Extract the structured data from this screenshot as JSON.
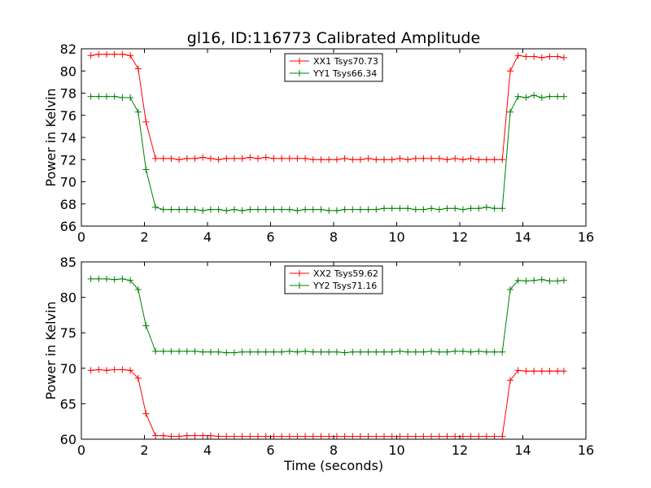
{
  "chart_data": [
    {
      "type": "line",
      "title": "gl16, ID:116773 Calibrated Amplitude",
      "xlabel": "",
      "ylabel": "Power in Kelvin",
      "xlim": [
        0,
        16
      ],
      "ylim": [
        66,
        82
      ],
      "xticks": [
        0,
        2,
        4,
        6,
        8,
        10,
        12,
        14,
        16
      ],
      "yticks": [
        66,
        68,
        70,
        72,
        74,
        76,
        78,
        80,
        82
      ],
      "grid": false,
      "legend_position": "upper-center",
      "series": [
        {
          "name": "XX1 Tsys70.73",
          "color": "#ff0000",
          "x": [
            0.3,
            0.55,
            0.8,
            1.05,
            1.3,
            1.55,
            1.8,
            2.05,
            2.35,
            2.6,
            2.85,
            3.1,
            3.35,
            3.6,
            3.85,
            4.1,
            4.35,
            4.6,
            4.85,
            5.1,
            5.35,
            5.6,
            5.85,
            6.1,
            6.35,
            6.6,
            6.85,
            7.1,
            7.35,
            7.6,
            7.85,
            8.1,
            8.35,
            8.6,
            8.85,
            9.1,
            9.35,
            9.6,
            9.85,
            10.1,
            10.35,
            10.6,
            10.85,
            11.1,
            11.35,
            11.6,
            11.85,
            12.1,
            12.35,
            12.6,
            12.85,
            13.1,
            13.35,
            13.6,
            13.85,
            14.1,
            14.35,
            14.6,
            14.85,
            15.1,
            15.3
          ],
          "y": [
            81.4,
            81.5,
            81.5,
            81.5,
            81.5,
            81.4,
            80.2,
            75.4,
            72.1,
            72.1,
            72.1,
            72.0,
            72.1,
            72.1,
            72.2,
            72.1,
            72.0,
            72.1,
            72.1,
            72.1,
            72.2,
            72.1,
            72.2,
            72.1,
            72.1,
            72.1,
            72.1,
            72.1,
            72.0,
            72.0,
            72.0,
            72.0,
            72.1,
            72.0,
            72.0,
            72.1,
            72.0,
            72.0,
            72.0,
            72.1,
            72.0,
            72.1,
            72.1,
            72.1,
            72.1,
            72.0,
            72.1,
            72.0,
            72.1,
            72.0,
            72.0,
            72.0,
            72.0,
            80.0,
            81.4,
            81.3,
            81.3,
            81.2,
            81.3,
            81.3,
            81.2
          ]
        },
        {
          "name": "YY1 Tsys66.34",
          "color": "#008000",
          "x": [
            0.3,
            0.55,
            0.8,
            1.05,
            1.3,
            1.55,
            1.8,
            2.05,
            2.35,
            2.6,
            2.85,
            3.1,
            3.35,
            3.6,
            3.85,
            4.1,
            4.35,
            4.6,
            4.85,
            5.1,
            5.35,
            5.6,
            5.85,
            6.1,
            6.35,
            6.6,
            6.85,
            7.1,
            7.35,
            7.6,
            7.85,
            8.1,
            8.35,
            8.6,
            8.85,
            9.1,
            9.35,
            9.6,
            9.85,
            10.1,
            10.35,
            10.6,
            10.85,
            11.1,
            11.35,
            11.6,
            11.85,
            12.1,
            12.35,
            12.6,
            12.85,
            13.1,
            13.35,
            13.6,
            13.85,
            14.1,
            14.35,
            14.6,
            14.85,
            15.1,
            15.3
          ],
          "y": [
            77.7,
            77.7,
            77.7,
            77.7,
            77.6,
            77.6,
            76.3,
            71.1,
            67.7,
            67.5,
            67.5,
            67.5,
            67.5,
            67.5,
            67.4,
            67.5,
            67.5,
            67.4,
            67.5,
            67.4,
            67.5,
            67.5,
            67.5,
            67.5,
            67.5,
            67.5,
            67.4,
            67.5,
            67.5,
            67.5,
            67.4,
            67.4,
            67.5,
            67.5,
            67.5,
            67.5,
            67.5,
            67.6,
            67.6,
            67.6,
            67.6,
            67.5,
            67.5,
            67.6,
            67.5,
            67.6,
            67.6,
            67.5,
            67.6,
            67.6,
            67.7,
            67.6,
            67.6,
            76.3,
            77.7,
            77.6,
            77.8,
            77.6,
            77.7,
            77.7,
            77.7
          ]
        }
      ]
    },
    {
      "type": "line",
      "title": "",
      "xlabel": "Time (seconds)",
      "ylabel": "Power in Kelvin",
      "xlim": [
        0,
        16
      ],
      "ylim": [
        60,
        85
      ],
      "xticks": [
        0,
        2,
        4,
        6,
        8,
        10,
        12,
        14,
        16
      ],
      "yticks": [
        60,
        65,
        70,
        75,
        80,
        85
      ],
      "grid": false,
      "legend_position": "upper-center",
      "series": [
        {
          "name": "XX2 Tsys59.62",
          "color": "#ff0000",
          "x": [
            0.3,
            0.55,
            0.8,
            1.05,
            1.3,
            1.55,
            1.8,
            2.05,
            2.35,
            2.6,
            2.85,
            3.1,
            3.35,
            3.6,
            3.85,
            4.1,
            4.35,
            4.6,
            4.85,
            5.1,
            5.35,
            5.6,
            5.85,
            6.1,
            6.35,
            6.6,
            6.85,
            7.1,
            7.35,
            7.6,
            7.85,
            8.1,
            8.35,
            8.6,
            8.85,
            9.1,
            9.35,
            9.6,
            9.85,
            10.1,
            10.35,
            10.6,
            10.85,
            11.1,
            11.35,
            11.6,
            11.85,
            12.1,
            12.35,
            12.6,
            12.85,
            13.1,
            13.35,
            13.6,
            13.85,
            14.1,
            14.35,
            14.6,
            14.85,
            15.1,
            15.3
          ],
          "y": [
            69.7,
            69.8,
            69.7,
            69.8,
            69.8,
            69.7,
            68.6,
            63.6,
            60.5,
            60.5,
            60.4,
            60.4,
            60.5,
            60.5,
            60.5,
            60.5,
            60.4,
            60.4,
            60.4,
            60.4,
            60.4,
            60.4,
            60.4,
            60.4,
            60.4,
            60.4,
            60.4,
            60.4,
            60.4,
            60.4,
            60.4,
            60.4,
            60.4,
            60.4,
            60.4,
            60.4,
            60.4,
            60.4,
            60.4,
            60.4,
            60.4,
            60.4,
            60.4,
            60.4,
            60.4,
            60.4,
            60.4,
            60.4,
            60.4,
            60.4,
            60.4,
            60.4,
            60.4,
            68.3,
            69.7,
            69.6,
            69.6,
            69.6,
            69.6,
            69.6,
            69.6
          ]
        },
        {
          "name": "YY2 Tsys71.16",
          "color": "#008000",
          "x": [
            0.3,
            0.55,
            0.8,
            1.05,
            1.3,
            1.55,
            1.8,
            2.05,
            2.35,
            2.6,
            2.85,
            3.1,
            3.35,
            3.6,
            3.85,
            4.1,
            4.35,
            4.6,
            4.85,
            5.1,
            5.35,
            5.6,
            5.85,
            6.1,
            6.35,
            6.6,
            6.85,
            7.1,
            7.35,
            7.6,
            7.85,
            8.1,
            8.35,
            8.6,
            8.85,
            9.1,
            9.35,
            9.6,
            9.85,
            10.1,
            10.35,
            10.6,
            10.85,
            11.1,
            11.35,
            11.6,
            11.85,
            12.1,
            12.35,
            12.6,
            12.85,
            13.1,
            13.35,
            13.6,
            13.85,
            14.1,
            14.35,
            14.6,
            14.85,
            15.1,
            15.3
          ],
          "y": [
            82.6,
            82.6,
            82.6,
            82.5,
            82.6,
            82.4,
            81.1,
            76.0,
            72.4,
            72.4,
            72.4,
            72.4,
            72.4,
            72.4,
            72.3,
            72.3,
            72.3,
            72.2,
            72.2,
            72.3,
            72.3,
            72.3,
            72.3,
            72.3,
            72.3,
            72.4,
            72.3,
            72.4,
            72.3,
            72.3,
            72.3,
            72.3,
            72.2,
            72.3,
            72.3,
            72.3,
            72.3,
            72.3,
            72.3,
            72.4,
            72.3,
            72.3,
            72.3,
            72.4,
            72.3,
            72.3,
            72.4,
            72.4,
            72.3,
            72.4,
            72.3,
            72.3,
            72.3,
            81.1,
            82.4,
            82.3,
            82.4,
            82.5,
            82.3,
            82.3,
            82.4
          ]
        }
      ]
    }
  ]
}
